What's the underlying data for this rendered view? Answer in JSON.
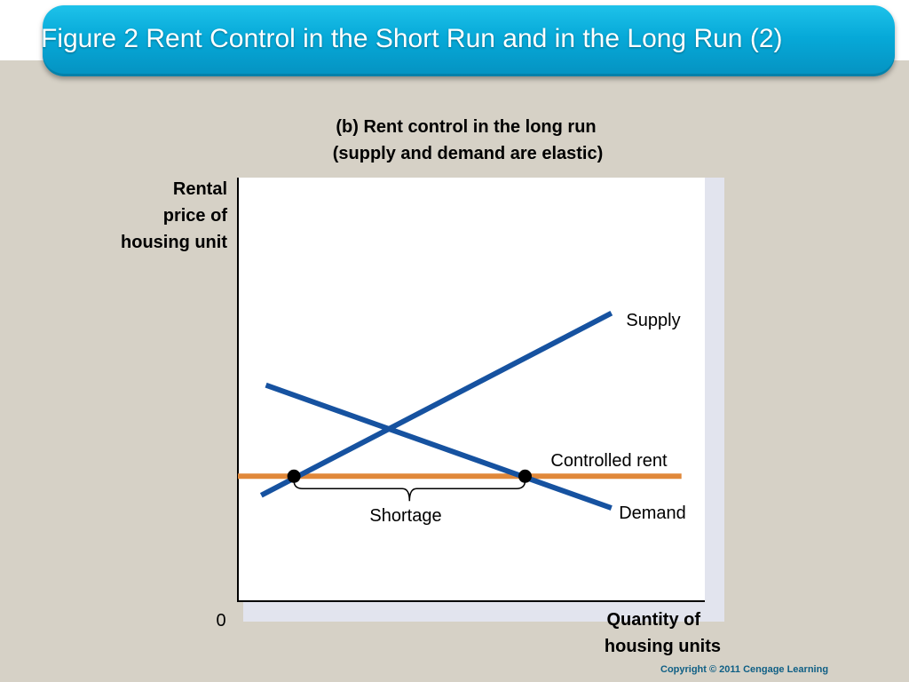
{
  "header": {
    "title": "Figure 2 Rent Control in the Short Run and in the Long Run (2)"
  },
  "chart_data": {
    "type": "line",
    "title_line1": "(b) Rent control in the long run",
    "title_line2": "(supply and demand are elastic)",
    "ylabel_lines": [
      "Rental",
      "price of",
      "housing unit"
    ],
    "xlabel_lines": [
      "Quantity of",
      "housing units"
    ],
    "origin_label": "0",
    "xlim": [
      0,
      100
    ],
    "ylim": [
      0,
      100
    ],
    "grid": false,
    "series": [
      {
        "name": "Supply",
        "color": "#1652a0",
        "points": [
          [
            5,
            25
          ],
          [
            80,
            68
          ]
        ]
      },
      {
        "name": "Demand",
        "color": "#1652a0",
        "points": [
          [
            6,
            51
          ],
          [
            80,
            22
          ]
        ]
      },
      {
        "name": "Controlled rent",
        "color": "#e0883a",
        "points": [
          [
            0,
            29.5
          ],
          [
            95,
            29.5
          ]
        ]
      }
    ],
    "markers": [
      {
        "label": "supply-at-controlled-rent",
        "x": 12,
        "y": 29.5
      },
      {
        "label": "demand-at-controlled-rent",
        "x": 61.5,
        "y": 29.5
      }
    ],
    "shortage": {
      "label": "Shortage",
      "x_from": 12,
      "x_to": 61.5
    }
  },
  "footer": {
    "copyright": "Copyright © 2011   Cengage Learning"
  }
}
